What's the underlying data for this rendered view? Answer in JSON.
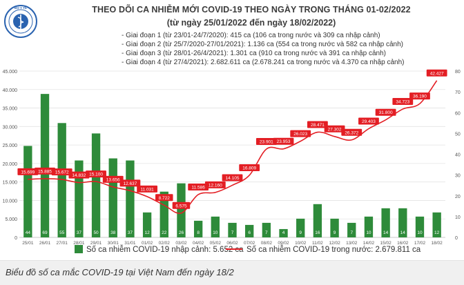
{
  "header": {
    "title": "THEO DÕI CA NHIỄM MỚI COVID-19 THEO NGÀY TRONG THÁNG 01-02/2022",
    "subtitle": "(từ ngày 25/01/2022 đến ngày 18/02/2022)",
    "logo_text": "BỘ Y TẾ"
  },
  "phases": [
    "- Giai đoạn 1 (từ 23/01-24/7/2020): 415 ca (106 ca trong nước và 309 ca nhập cảnh)",
    "- Giai đoạn 2 (từ 25/7/2020-27/01/2021): 1.136 ca (554 ca trong nước và 582 ca nhập cảnh)",
    "- Giai đoạn 3 (từ 28/01-26/4/2021): 1.301 ca (910 ca trong nước và 391 ca nhập cảnh)",
    "- Giai đoạn 4 (từ 27/4/2021): 2.682.611 ca (2.678.241 ca trong nước và 4.370 ca nhập cảnh)"
  ],
  "legend": {
    "bars": "Số ca nhiễm COVID-19 nhập cảnh: 5.652 ca",
    "line": "Số ca nhiễm COVID-19 trong nước: 2.679.811 ca"
  },
  "caption": "Biểu đồ số ca mắc COVID-19 tại Việt Nam đến ngày 18/2",
  "colors": {
    "bar": "#2e8b3a",
    "line": "#e31e24",
    "grid": "#e3e3e3",
    "axis_text": "#555555"
  },
  "chart_data": {
    "type": "bar",
    "categories": [
      "25/01",
      "26/01",
      "27/01",
      "28/01",
      "29/01",
      "30/01",
      "31/01",
      "01/02",
      "02/02",
      "03/02",
      "04/02",
      "05/02",
      "06/02",
      "07/02",
      "08/02",
      "09/02",
      "10/02",
      "11/02",
      "12/02",
      "13/02",
      "14/02",
      "15/02",
      "16/02",
      "17/02",
      "18/02"
    ],
    "series": [
      {
        "name": "Số ca nhiễm COVID-19 nhập cảnh: 5.652 ca",
        "type": "bar",
        "axis": "right",
        "values": [
          44,
          69,
          55,
          37,
          50,
          38,
          37,
          12,
          22,
          26,
          8,
          10,
          7,
          6,
          7,
          4,
          9,
          16,
          9,
          7,
          10,
          14,
          14,
          10,
          12
        ],
        "labels": [
          "44",
          "69",
          "55",
          "37",
          "50",
          "38",
          "37",
          "12",
          "22",
          "26",
          "8",
          "10",
          "7",
          "6",
          "7",
          "4",
          "9",
          "16",
          "9",
          "7",
          "10",
          "14",
          "14",
          "10",
          "12"
        ]
      },
      {
        "name": "Số ca nhiễm COVID-19 trong nước: 2.679.811 ca",
        "type": "line",
        "axis": "left",
        "values": [
          15699,
          15885,
          15672,
          14832,
          15100,
          13656,
          12637,
          11031,
          8722,
          6575,
          11586,
          12160,
          14105,
          16809,
          23901,
          23953,
          26023,
          28471,
          27302,
          26372,
          29403,
          31800,
          34723,
          36190,
          42427
        ],
        "labels": [
          "15.699",
          "15.885",
          "15.672",
          "14.832",
          "15.100",
          "13.656",
          "12.637",
          "11.031",
          "8.722",
          "6.575",
          "11.586",
          "12.160",
          "14.105",
          "16.809",
          "23.901",
          "23.953",
          "26.023",
          "28.471",
          "27.302",
          "26.372",
          "29.403",
          "31.800",
          "34.723",
          "36.190",
          "42.427"
        ]
      }
    ],
    "y_left": {
      "range": [
        0,
        45000
      ],
      "ticks": [
        "0",
        "5.000",
        "10.000",
        "15.000",
        "20.000",
        "25.000",
        "30.000",
        "35.000",
        "40.000",
        "45.000"
      ]
    },
    "y_right": {
      "range": [
        0,
        80
      ],
      "ticks": [
        "0",
        "10",
        "20",
        "30",
        "40",
        "50",
        "60",
        "70",
        "80"
      ]
    },
    "grid": true,
    "legend_position": "bottom"
  }
}
